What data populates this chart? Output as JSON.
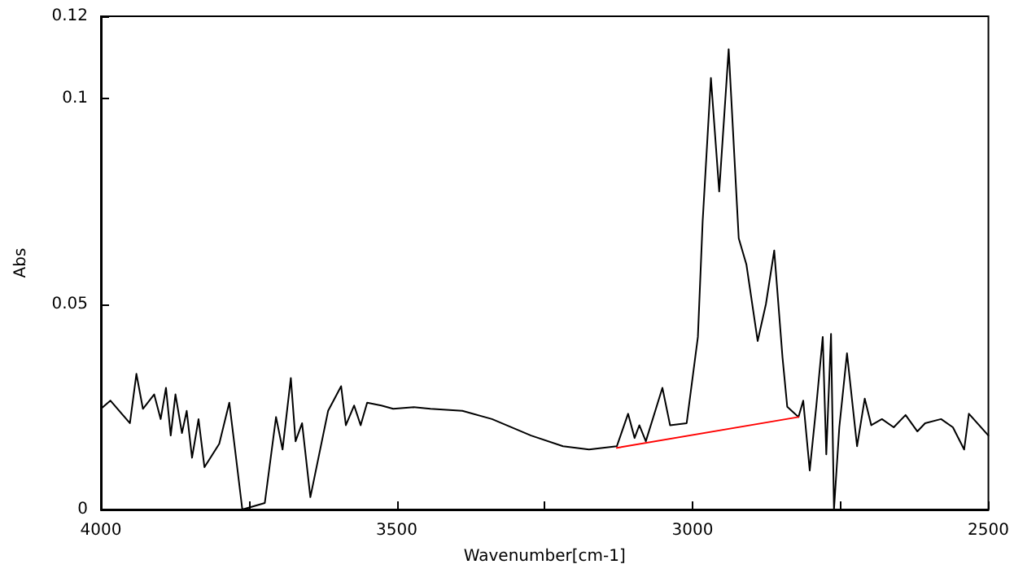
{
  "chart_data": {
    "type": "line",
    "xlabel": "Wavenumber[cm-1]",
    "ylabel": "Abs",
    "xlim": [
      4000,
      2500
    ],
    "ylim": [
      0,
      0.12
    ],
    "xticks": [
      4000,
      {
        "value": 3750,
        "label": null
      },
      3500,
      {
        "value": 3250,
        "label": null
      },
      3000,
      {
        "value": 2750,
        "label": null
      },
      2500
    ],
    "yticks": [
      0,
      0.05,
      0.1,
      0.12
    ],
    "grid": false,
    "marker": "none",
    "line_style": "solid",
    "series": [
      {
        "color": "#000000",
        "x": [
          4000,
          3984,
          3951,
          3940,
          3929,
          3910,
          3899,
          3890,
          3882,
          3874,
          3863,
          3855,
          3846,
          3835,
          3825,
          3800,
          3783,
          3775,
          3761,
          3723,
          3704,
          3693,
          3679,
          3671,
          3660,
          3646,
          3616,
          3594,
          3586,
          3572,
          3561,
          3550,
          3526,
          3506,
          3471,
          3443,
          3389,
          3339,
          3273,
          3219,
          3175,
          3128,
          3109,
          3098,
          3090,
          3079,
          3051,
          3038,
          3010,
          2991,
          2983,
          2969,
          2955,
          2939,
          2922,
          2909,
          2890,
          2876,
          2862,
          2848,
          2840,
          2821,
          2813,
          2802,
          2791,
          2780,
          2774,
          2766,
          2761,
          2752,
          2739,
          2722,
          2709,
          2698,
          2680,
          2660,
          2640,
          2620,
          2607,
          2580,
          2560,
          2541,
          2533,
          2500
        ],
        "values": [
          0.0245,
          0.0265,
          0.021,
          0.033,
          0.0245,
          0.028,
          0.022,
          0.0296,
          0.018,
          0.028,
          0.0186,
          0.024,
          0.0126,
          0.022,
          0.0103,
          0.016,
          0.026,
          0.0166,
          0,
          0.0016,
          0.0225,
          0.0146,
          0.032,
          0.0166,
          0.021,
          0.003,
          0.024,
          0.03,
          0.0205,
          0.0253,
          0.0205,
          0.026,
          0.0253,
          0.0245,
          0.0249,
          0.0245,
          0.024,
          0.022,
          0.018,
          0.0154,
          0.0146,
          0.0154,
          0.0233,
          0.0174,
          0.0205,
          0.0166,
          0.0296,
          0.0205,
          0.021,
          0.042,
          0.07,
          0.105,
          0.0774,
          0.112,
          0.066,
          0.0596,
          0.041,
          0.05,
          0.063,
          0.037,
          0.025,
          0.0225,
          0.0265,
          0.0095,
          0.025,
          0.042,
          0.0134,
          0.0427,
          0,
          0.02,
          0.038,
          0.0154,
          0.027,
          0.0205,
          0.022,
          0.02,
          0.023,
          0.019,
          0.021,
          0.022,
          0.02,
          0.0146,
          0.0233,
          0.018
        ]
      },
      {
        "color": "#ff0000",
        "x": [
          3128,
          2821
        ],
        "values": [
          0.015,
          0.0225
        ]
      }
    ]
  }
}
